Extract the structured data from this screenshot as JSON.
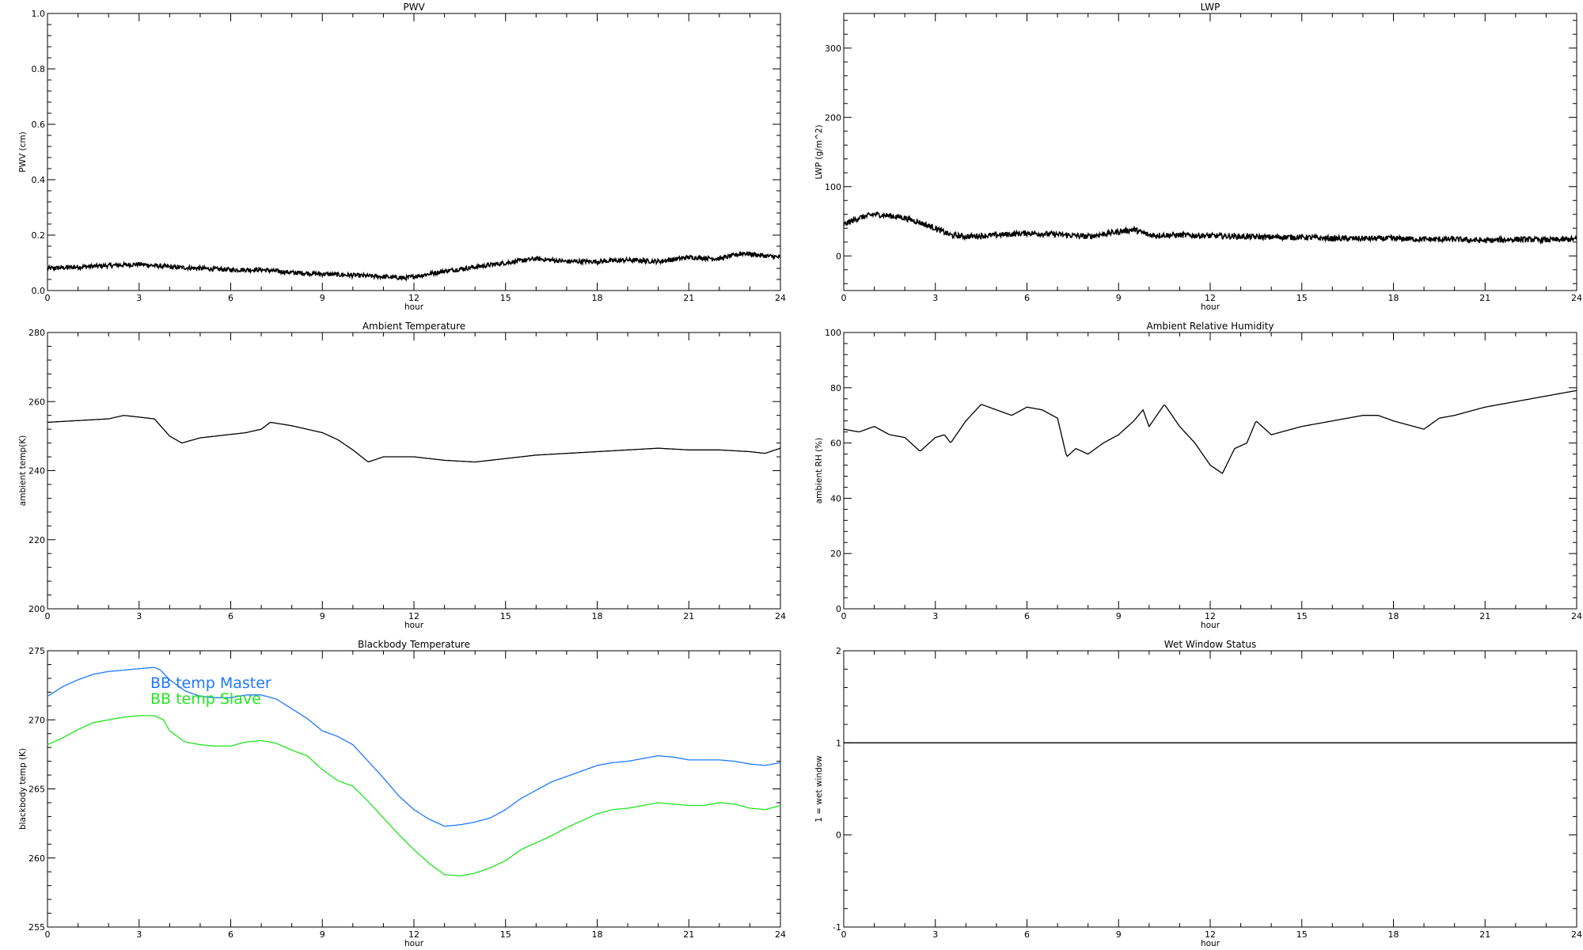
{
  "charts": [
    {
      "id": "pwv",
      "title": "PWV",
      "xlabel": "hour",
      "ylabel": "PWV (cm)",
      "xlim": [
        0,
        24
      ],
      "ylim": [
        0.0,
        1.0
      ],
      "xticks": [
        "0",
        "3",
        "6",
        "9",
        "12",
        "15",
        "18",
        "21",
        "24"
      ],
      "yticks": [
        "0.0",
        "0.2",
        "0.4",
        "0.6",
        "0.8",
        "1.0"
      ],
      "color": "#000000",
      "noise": 0.008
    },
    {
      "id": "lwp",
      "title": "LWP",
      "xlabel": "hour",
      "ylabel": "LWP (g/m^2)",
      "xlim": [
        0,
        24
      ],
      "ylim": [
        -50,
        350
      ],
      "xticks": [
        "0",
        "3",
        "6",
        "9",
        "12",
        "15",
        "18",
        "21",
        "24"
      ],
      "yticks": [
        "0",
        "100",
        "200",
        "300"
      ],
      "color": "#000000",
      "noise": 4
    },
    {
      "id": "ambient-temp",
      "title": "Ambient Temperature",
      "xlabel": "hour",
      "ylabel": "ambient temp(K)",
      "xlim": [
        0,
        24
      ],
      "ylim": [
        200,
        280
      ],
      "xticks": [
        "0",
        "3",
        "6",
        "9",
        "12",
        "15",
        "18",
        "21",
        "24"
      ],
      "yticks": [
        "200",
        "220",
        "240",
        "260",
        "280"
      ],
      "color": "#000000",
      "noise": 0
    },
    {
      "id": "ambient-rh",
      "title": "Ambient Relative Humidity",
      "xlabel": "hour",
      "ylabel": "ambient RH (%)",
      "xlim": [
        0,
        24
      ],
      "ylim": [
        0,
        100
      ],
      "xticks": [
        "0",
        "3",
        "6",
        "9",
        "12",
        "15",
        "18",
        "21",
        "24"
      ],
      "yticks": [
        "0",
        "20",
        "40",
        "60",
        "80",
        "100"
      ],
      "color": "#000000",
      "noise": 0
    },
    {
      "id": "blackbody-temp",
      "title": "Blackbody Temperature",
      "xlabel": "hour",
      "ylabel": "blackbody temp (K)",
      "xlim": [
        0,
        24
      ],
      "ylim": [
        255,
        275
      ],
      "xticks": [
        "0",
        "3",
        "6",
        "9",
        "12",
        "15",
        "18",
        "21",
        "24"
      ],
      "yticks": [
        "255",
        "260",
        "265",
        "270",
        "275"
      ],
      "color": "#000000",
      "noise": 0
    },
    {
      "id": "wet-window",
      "title": "Wet Window Status",
      "xlabel": "hour",
      "ylabel": "1 = wet window",
      "xlim": [
        0,
        24
      ],
      "ylim": [
        -1,
        2
      ],
      "xticks": [
        "0",
        "3",
        "6",
        "9",
        "12",
        "15",
        "18",
        "21",
        "24"
      ],
      "yticks": [
        "-1",
        "0",
        "1",
        "2"
      ],
      "color": "#000000",
      "noise": 0
    }
  ],
  "chart_data": [
    {
      "type": "line",
      "title": "PWV",
      "xlabel": "hour",
      "ylabel": "PWV (cm)",
      "xlim": [
        0,
        24
      ],
      "ylim": [
        0.0,
        1.0
      ],
      "grid": false,
      "series": [
        {
          "x": [
            0,
            1,
            2,
            3,
            4,
            5,
            6,
            7,
            8,
            9,
            10,
            11,
            11.7,
            12.5,
            13,
            14,
            15,
            16,
            17,
            18,
            19,
            20,
            21,
            22,
            22.8,
            23.5,
            24
          ],
          "y": [
            0.08,
            0.085,
            0.09,
            0.095,
            0.085,
            0.08,
            0.075,
            0.075,
            0.065,
            0.06,
            0.055,
            0.05,
            0.045,
            0.06,
            0.07,
            0.085,
            0.1,
            0.115,
            0.105,
            0.105,
            0.11,
            0.105,
            0.12,
            0.115,
            0.135,
            0.125,
            0.12
          ]
        }
      ]
    },
    {
      "type": "line",
      "title": "LWP",
      "xlabel": "hour",
      "ylabel": "LWP (g/m^2)",
      "xlim": [
        0,
        24
      ],
      "ylim": [
        -50,
        350
      ],
      "grid": false,
      "series": [
        {
          "x": [
            0,
            0.5,
            1,
            1.5,
            2,
            2.5,
            3,
            3.5,
            4,
            5,
            6,
            7,
            8,
            9,
            9.5,
            10,
            11,
            12,
            13,
            14,
            15,
            16,
            17,
            18,
            19,
            20,
            21,
            22,
            23,
            24
          ],
          "y": [
            45,
            55,
            60,
            58,
            55,
            48,
            40,
            30,
            28,
            30,
            33,
            31,
            28,
            35,
            38,
            30,
            30,
            29,
            28,
            27,
            27,
            25,
            25,
            25,
            24,
            24,
            22,
            24,
            23,
            24
          ]
        }
      ]
    },
    {
      "type": "line",
      "title": "Ambient Temperature",
      "xlabel": "hour",
      "ylabel": "ambient temp(K)",
      "xlim": [
        0,
        24
      ],
      "ylim": [
        200,
        280
      ],
      "grid": false,
      "series": [
        {
          "x": [
            0,
            1,
            2,
            2.5,
            3,
            3.5,
            4,
            4.4,
            5,
            6,
            6.5,
            7,
            7.3,
            8,
            8.5,
            9,
            9.5,
            10,
            10.5,
            11,
            12,
            13,
            14,
            15,
            16,
            17,
            18,
            19,
            20,
            21,
            22,
            23,
            23.5,
            24
          ],
          "y": [
            254,
            254.5,
            255,
            256,
            255.5,
            255,
            250,
            248,
            249.5,
            250.5,
            251,
            252,
            254,
            253,
            252,
            251,
            249,
            246,
            242.5,
            244,
            244,
            243,
            242.5,
            243.5,
            244.5,
            245,
            245.5,
            246,
            246.5,
            246,
            246,
            245.5,
            245,
            246.5
          ]
        }
      ]
    },
    {
      "type": "line",
      "title": "Ambient Relative Humidity",
      "xlabel": "hour",
      "ylabel": "ambient RH (%)",
      "xlim": [
        0,
        24
      ],
      "ylim": [
        0,
        100
      ],
      "grid": false,
      "series": [
        {
          "x": [
            0,
            0.5,
            1,
            1.5,
            2,
            2.5,
            3,
            3.3,
            3.5,
            4,
            4.5,
            5,
            5.5,
            6,
            6.5,
            7,
            7.3,
            7.6,
            8,
            8.5,
            9,
            9.5,
            9.8,
            10,
            10.5,
            11,
            11.5,
            12,
            12.4,
            12.8,
            13.2,
            13.5,
            14,
            15,
            16,
            17,
            17.5,
            18,
            19,
            19.5,
            20,
            21,
            22,
            23,
            24
          ],
          "y": [
            65,
            64,
            66,
            63,
            62,
            57,
            62,
            63,
            60,
            68,
            74,
            72,
            70,
            73,
            72,
            69,
            55,
            58,
            56,
            60,
            63,
            68,
            72,
            66,
            74,
            66,
            60,
            52,
            49,
            58,
            60,
            68,
            63,
            66,
            68,
            70,
            70,
            68,
            65,
            69,
            70,
            73,
            75,
            77,
            79
          ]
        }
      ]
    },
    {
      "type": "line",
      "title": "Blackbody Temperature",
      "xlabel": "hour",
      "ylabel": "blackbody temp (K)",
      "xlim": [
        0,
        24
      ],
      "ylim": [
        255,
        275
      ],
      "grid": false,
      "legend": "top-left",
      "series": [
        {
          "name": "BB temp Master",
          "color": "#1e78ff",
          "x": [
            0,
            0.5,
            1,
            1.5,
            2,
            2.5,
            3,
            3.5,
            3.7,
            4,
            4.5,
            5,
            5.5,
            6,
            6.5,
            7,
            7.5,
            8,
            8.5,
            9,
            9.5,
            10,
            10.5,
            11,
            11.5,
            12,
            12.5,
            13,
            13.5,
            14,
            14.5,
            15,
            15.5,
            16,
            16.5,
            17,
            17.5,
            18,
            18.5,
            19,
            19.5,
            20,
            20.5,
            21,
            21.5,
            22,
            22.5,
            23,
            23.5,
            24
          ],
          "y": [
            271.7,
            272.4,
            272.9,
            273.3,
            273.5,
            273.6,
            273.7,
            273.8,
            273.6,
            272.9,
            272.1,
            271.7,
            271.6,
            271.6,
            271.8,
            271.8,
            271.5,
            270.8,
            270.1,
            269.2,
            268.8,
            268.2,
            267.0,
            265.8,
            264.5,
            263.5,
            262.8,
            262.3,
            262.4,
            262.6,
            262.9,
            263.5,
            264.3,
            264.9,
            265.5,
            265.9,
            266.3,
            266.7,
            266.9,
            267.0,
            267.2,
            267.4,
            267.3,
            267.1,
            267.1,
            267.1,
            267.0,
            266.8,
            266.7,
            266.9
          ]
        },
        {
          "name": "BB temp Slave",
          "color": "#1ee61e",
          "x": [
            0,
            0.5,
            1,
            1.5,
            2,
            2.5,
            3,
            3.5,
            3.8,
            4,
            4.5,
            5,
            5.5,
            6,
            6.5,
            7,
            7.5,
            8,
            8.5,
            9,
            9.5,
            10,
            10.5,
            11,
            11.5,
            12,
            12.5,
            13,
            13.5,
            14,
            14.5,
            15,
            15.5,
            16,
            16.5,
            17,
            17.5,
            18,
            18.5,
            19,
            19.5,
            20,
            20.5,
            21,
            21.5,
            22,
            22.5,
            23,
            23.5,
            24
          ],
          "y": [
            268.2,
            268.7,
            269.3,
            269.8,
            270.0,
            270.2,
            270.3,
            270.3,
            270.0,
            269.2,
            268.4,
            268.2,
            268.1,
            268.1,
            268.4,
            268.5,
            268.3,
            267.8,
            267.4,
            266.4,
            265.6,
            265.2,
            264.1,
            262.9,
            261.7,
            260.6,
            259.6,
            258.8,
            258.7,
            258.9,
            259.3,
            259.8,
            260.6,
            261.1,
            261.6,
            262.2,
            262.7,
            263.2,
            263.5,
            263.6,
            263.8,
            264.0,
            263.9,
            263.8,
            263.8,
            264.0,
            263.9,
            263.6,
            263.5,
            263.8
          ]
        }
      ]
    },
    {
      "type": "line",
      "title": "Wet Window Status",
      "xlabel": "hour",
      "ylabel": "1 = wet window",
      "xlim": [
        0,
        24
      ],
      "ylim": [
        -1,
        2
      ],
      "grid": false,
      "series": [
        {
          "x": [
            0,
            24
          ],
          "y": [
            1,
            1
          ]
        }
      ]
    }
  ]
}
